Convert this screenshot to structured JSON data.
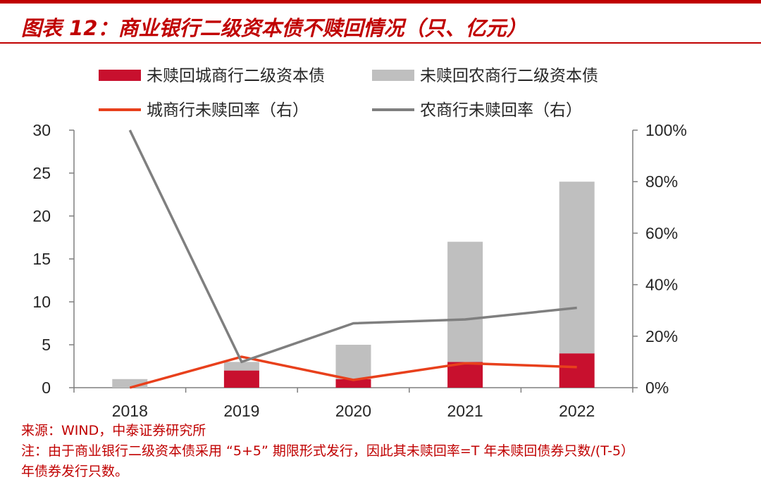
{
  "header": {
    "title": "图表 12：商业银行二级资本债不赎回情况（只、亿元）"
  },
  "chart_data": {
    "type": "bar",
    "categories": [
      "2018",
      "2019",
      "2020",
      "2021",
      "2022"
    ],
    "series": [
      {
        "name": "未赎回城商行二级资本债",
        "type": "bar",
        "stack": "a",
        "axis": "left",
        "color": "#c8102e",
        "values": [
          0,
          2,
          1,
          3,
          4
        ]
      },
      {
        "name": "未赎回农商行二级资本债",
        "type": "bar",
        "stack": "a",
        "axis": "left",
        "color": "#bfbfbf",
        "values": [
          1,
          1,
          4,
          14,
          20
        ]
      },
      {
        "name": "城商行未赎回率（右）",
        "type": "line",
        "axis": "right",
        "color": "#e8401c",
        "values": [
          0,
          12,
          3,
          9.5,
          8
        ]
      },
      {
        "name": "农商行未赎回率（右）",
        "type": "line",
        "axis": "right",
        "color": "#7f7f7f",
        "values": [
          100,
          10,
          25,
          26.5,
          31
        ]
      }
    ],
    "y_left": {
      "min": 0,
      "max": 30,
      "ticks": [
        "0",
        "5",
        "10",
        "15",
        "20",
        "25",
        "30"
      ]
    },
    "y_right": {
      "min": 0,
      "max": 100,
      "ticks": [
        "0%",
        "20%",
        "40%",
        "60%",
        "80%",
        "100%"
      ]
    },
    "legend_position": "top",
    "grid": false
  },
  "notes": {
    "source": "来源：WIND，中泰证券研究所",
    "note_line1": "注：由于商业银行二级资本债采用 “5+5” 期限形式发行，因此其未赎回率=T 年未赎回债券只数/(T-5）",
    "note_line2": "年债券发行只数。"
  }
}
